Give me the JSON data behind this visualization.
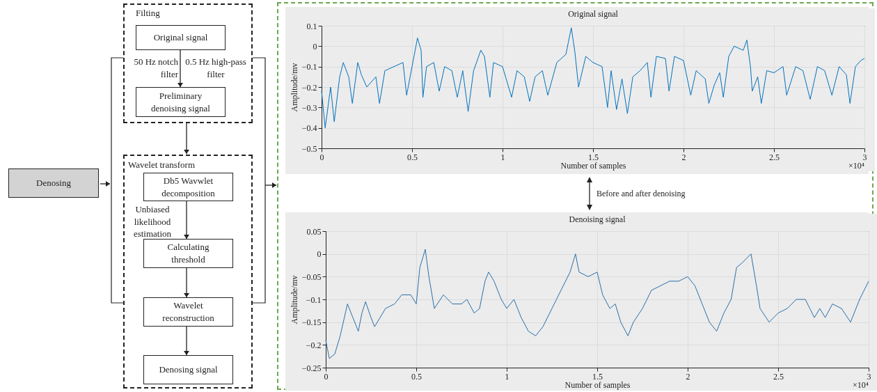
{
  "chart_data": [
    {
      "type": "other",
      "annotations": [
        "Denosing",
        "Filting",
        "Original signal",
        "50 Hz notch filter",
        "0.5 Hz high-pass filter",
        "Preliminary denoising signal",
        "Wavelet transform",
        "Db5 Wavwlet decomposition",
        "Unbiased likelihood estimation",
        "Calculating threshold",
        "Wavelet reconstruction",
        "Denosing signal"
      ]
    },
    {
      "type": "line",
      "title": "Original signal",
      "xlabel": "Number of samples",
      "ylabel": "Amplitude/mv",
      "grid": true,
      "xlim": [
        0,
        3
      ],
      "ylim": [
        -0.5,
        0.1
      ],
      "xticks": [
        0,
        0.5,
        1,
        1.5,
        2,
        2.5,
        3
      ],
      "yticks": [
        -0.5,
        -0.4,
        -0.3,
        -0.2,
        -0.1,
        0,
        0.1
      ],
      "annotations": [
        "×10⁴",
        "Before and after denoising"
      ],
      "x": [
        0,
        0.02,
        0.05,
        0.07,
        0.1,
        0.12,
        0.15,
        0.17,
        0.2,
        0.22,
        0.25,
        0.3,
        0.32,
        0.35,
        0.4,
        0.45,
        0.47,
        0.5,
        0.53,
        0.55,
        0.56,
        0.58,
        0.62,
        0.65,
        0.68,
        0.72,
        0.75,
        0.78,
        0.81,
        0.84,
        0.88,
        0.9,
        0.93,
        0.95,
        1.0,
        1.05,
        1.08,
        1.12,
        1.15,
        1.18,
        1.22,
        1.25,
        1.3,
        1.35,
        1.38,
        1.4,
        1.42,
        1.46,
        1.5,
        1.55,
        1.58,
        1.6,
        1.63,
        1.66,
        1.69,
        1.72,
        1.76,
        1.8,
        1.82,
        1.85,
        1.9,
        1.92,
        1.95,
        2.0,
        2.04,
        2.07,
        2.12,
        2.14,
        2.17,
        2.2,
        2.22,
        2.25,
        2.28,
        2.33,
        2.35,
        2.37,
        2.38,
        2.41,
        2.43,
        2.46,
        2.5,
        2.55,
        2.57,
        2.62,
        2.66,
        2.7,
        2.74,
        2.78,
        2.82,
        2.86,
        2.9,
        2.92,
        2.95,
        2.98,
        3.0
      ],
      "series": [
        {
          "color": "#0072bd",
          "values": [
            -0.22,
            -0.4,
            -0.2,
            -0.37,
            -0.15,
            -0.08,
            -0.15,
            -0.28,
            -0.08,
            -0.14,
            -0.2,
            -0.15,
            -0.28,
            -0.12,
            -0.1,
            -0.08,
            -0.24,
            -0.1,
            0.04,
            -0.02,
            -0.25,
            -0.1,
            -0.08,
            -0.22,
            -0.1,
            -0.12,
            -0.25,
            -0.12,
            -0.32,
            -0.12,
            -0.02,
            -0.05,
            -0.25,
            -0.08,
            -0.1,
            -0.25,
            -0.12,
            -0.15,
            -0.27,
            -0.15,
            -0.12,
            -0.24,
            -0.08,
            -0.04,
            0.09,
            -0.03,
            -0.2,
            -0.05,
            -0.08,
            -0.1,
            -0.3,
            -0.12,
            -0.31,
            -0.16,
            -0.33,
            -0.15,
            -0.12,
            -0.08,
            -0.25,
            -0.05,
            -0.06,
            -0.22,
            -0.05,
            -0.07,
            -0.24,
            -0.12,
            -0.16,
            -0.28,
            -0.19,
            -0.13,
            -0.25,
            -0.05,
            0.0,
            -0.02,
            0.03,
            -0.1,
            -0.22,
            -0.15,
            -0.28,
            -0.12,
            -0.13,
            -0.1,
            -0.24,
            -0.1,
            -0.12,
            -0.26,
            -0.1,
            -0.12,
            -0.24,
            -0.1,
            -0.14,
            -0.28,
            -0.1,
            -0.07,
            -0.06
          ]
        }
      ]
    },
    {
      "type": "line",
      "title": "Denoising signal",
      "xlabel": "Number of samples",
      "ylabel": "Amplitude/mv",
      "grid": true,
      "xlim": [
        0,
        3
      ],
      "ylim": [
        -0.25,
        0.05
      ],
      "xticks": [
        0,
        0.5,
        1,
        1.5,
        2,
        2.5,
        3
      ],
      "yticks": [
        -0.25,
        -0.2,
        -0.15,
        -0.1,
        -0.05,
        0,
        0.05
      ],
      "annotations": [
        "×10⁴"
      ],
      "x": [
        0,
        0.02,
        0.05,
        0.08,
        0.12,
        0.15,
        0.18,
        0.2,
        0.22,
        0.25,
        0.27,
        0.3,
        0.33,
        0.38,
        0.42,
        0.47,
        0.5,
        0.52,
        0.55,
        0.57,
        0.6,
        0.65,
        0.7,
        0.75,
        0.78,
        0.82,
        0.85,
        0.88,
        0.9,
        0.93,
        0.97,
        1.0,
        1.04,
        1.08,
        1.12,
        1.16,
        1.2,
        1.25,
        1.3,
        1.35,
        1.38,
        1.4,
        1.45,
        1.5,
        1.53,
        1.57,
        1.6,
        1.63,
        1.67,
        1.7,
        1.75,
        1.8,
        1.85,
        1.9,
        1.95,
        2.0,
        2.04,
        2.08,
        2.12,
        2.16,
        2.2,
        2.24,
        2.27,
        2.3,
        2.35,
        2.38,
        2.4,
        2.45,
        2.5,
        2.55,
        2.6,
        2.65,
        2.7,
        2.73,
        2.76,
        2.8,
        2.85,
        2.9,
        2.95,
        3.0
      ],
      "series": [
        {
          "color": "#2a6fa8",
          "values": [
            -0.19,
            -0.23,
            -0.22,
            -0.18,
            -0.11,
            -0.14,
            -0.17,
            -0.13,
            -0.105,
            -0.14,
            -0.16,
            -0.14,
            -0.12,
            -0.11,
            -0.09,
            -0.09,
            -0.11,
            -0.03,
            0.01,
            -0.05,
            -0.12,
            -0.09,
            -0.11,
            -0.11,
            -0.1,
            -0.13,
            -0.12,
            -0.06,
            -0.04,
            -0.06,
            -0.1,
            -0.12,
            -0.1,
            -0.14,
            -0.17,
            -0.18,
            -0.16,
            -0.12,
            -0.08,
            -0.04,
            0.0,
            -0.04,
            -0.05,
            -0.04,
            -0.09,
            -0.12,
            -0.11,
            -0.15,
            -0.18,
            -0.15,
            -0.12,
            -0.08,
            -0.07,
            -0.06,
            -0.06,
            -0.05,
            -0.07,
            -0.11,
            -0.15,
            -0.17,
            -0.13,
            -0.1,
            -0.03,
            -0.02,
            0.0,
            -0.07,
            -0.12,
            -0.15,
            -0.13,
            -0.12,
            -0.1,
            -0.1,
            -0.14,
            -0.12,
            -0.14,
            -0.11,
            -0.12,
            -0.15,
            -0.1,
            -0.06
          ]
        }
      ]
    }
  ]
}
